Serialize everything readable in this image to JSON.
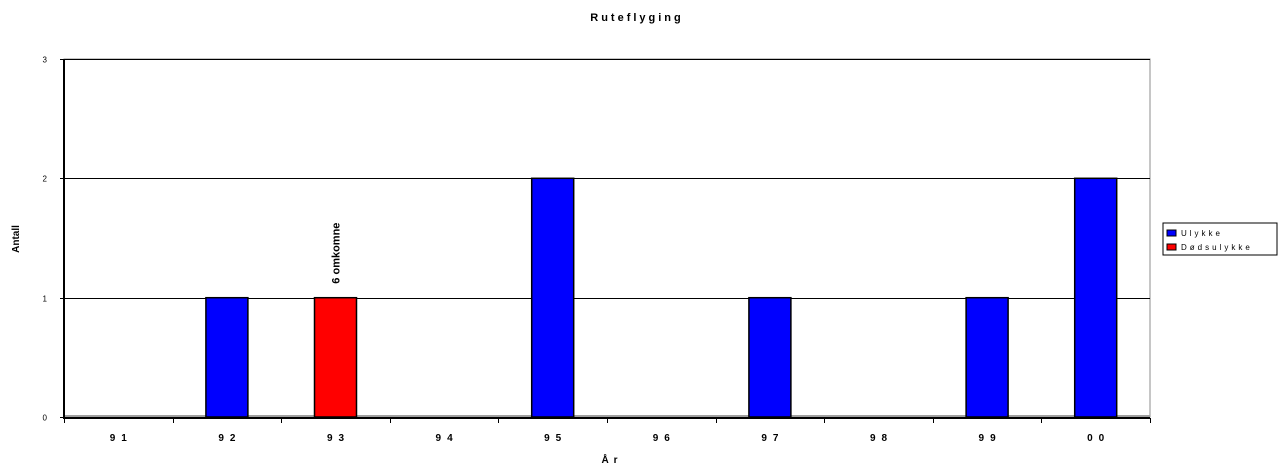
{
  "chart_data": {
    "type": "bar",
    "title": "Ruteflyging",
    "xlabel": "År",
    "ylabel": "Antall",
    "categories": [
      "91",
      "92",
      "93",
      "94",
      "95",
      "96",
      "97",
      "98",
      "99",
      "00"
    ],
    "series": [
      {
        "name": "Ulykke",
        "color": "#0000ff",
        "values": [
          0,
          1,
          0,
          0,
          2,
          0,
          1,
          0,
          1,
          2
        ]
      },
      {
        "name": "Dødsulykke",
        "color": "#ff0000",
        "values": [
          0,
          0,
          1,
          0,
          0,
          0,
          0,
          0,
          0,
          0
        ]
      }
    ],
    "ylim": [
      0,
      3
    ],
    "yticks": [
      0,
      1,
      2,
      3
    ],
    "grid": true,
    "legend_position": "right",
    "annotations": [
      {
        "category": "93",
        "text": "6 omkomne"
      }
    ]
  }
}
